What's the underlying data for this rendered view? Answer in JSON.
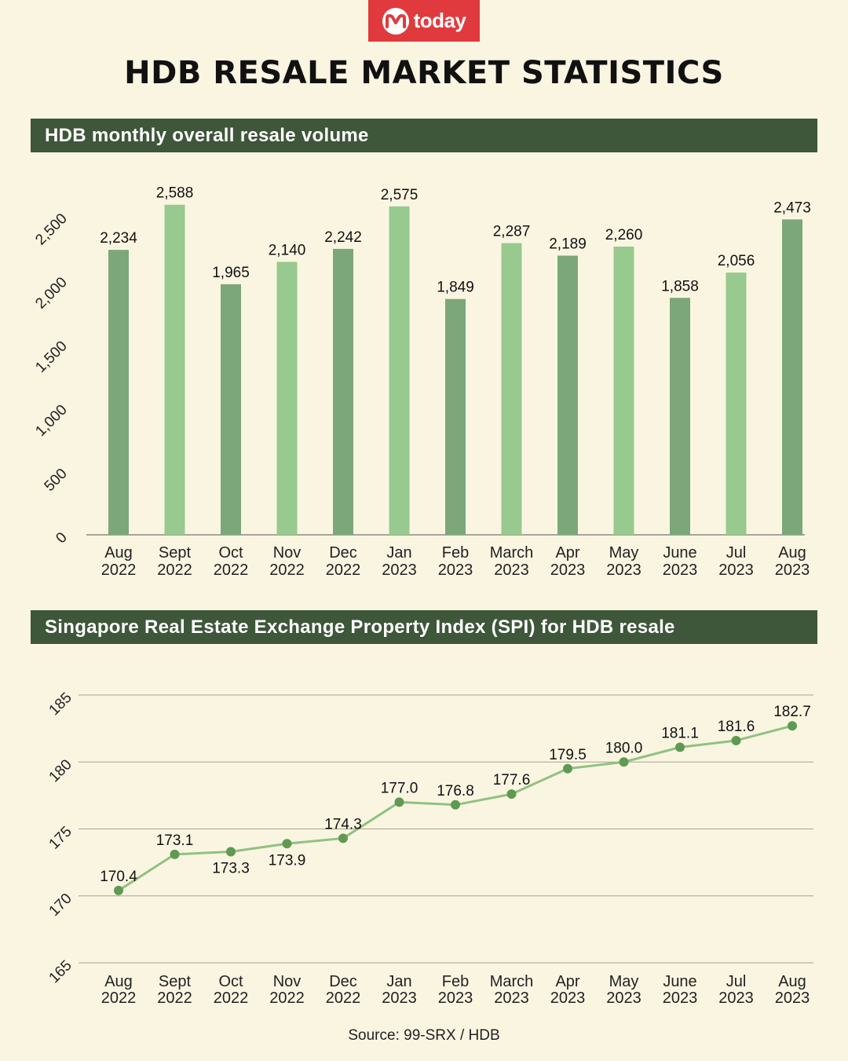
{
  "brand": {
    "logo_text": "today",
    "logo_color": "#e03a3e"
  },
  "title": "HDB RESALE MARKET STATISTICS",
  "source": "Source: 99-SRX / HDB",
  "colors": {
    "background": "#faf5e1",
    "header_bar": "#3e563a",
    "bar_dark": "#7ca77a",
    "bar_light": "#98c98f",
    "line": "#8fc282",
    "marker": "#5f9a52"
  },
  "chart_data": [
    {
      "type": "bar",
      "title": "HDB monthly overall resale volume",
      "categories": [
        [
          "Aug",
          "2022"
        ],
        [
          "Sept",
          "2022"
        ],
        [
          "Oct",
          "2022"
        ],
        [
          "Nov",
          "2022"
        ],
        [
          "Dec",
          "2022"
        ],
        [
          "Jan",
          "2023"
        ],
        [
          "Feb",
          "2023"
        ],
        [
          "March",
          "2023"
        ],
        [
          "Apr",
          "2023"
        ],
        [
          "May",
          "2023"
        ],
        [
          "June",
          "2023"
        ],
        [
          "Jul",
          "2023"
        ],
        [
          "Aug",
          "2023"
        ]
      ],
      "values": [
        2234,
        2588,
        1965,
        2140,
        2242,
        2575,
        1849,
        2287,
        2189,
        2260,
        1858,
        2056,
        2473
      ],
      "value_labels": [
        "2,234",
        "2,588",
        "1,965",
        "2,140",
        "2,242",
        "2,575",
        "1,849",
        "2,287",
        "2,189",
        "2,260",
        "1,858",
        "2,056",
        "2,473"
      ],
      "yticks": [
        0,
        500,
        1000,
        1500,
        2000,
        2500
      ],
      "ytick_labels": [
        "0",
        "500",
        "1,000",
        "1,500",
        "2,000",
        "2,500"
      ],
      "ylim": [
        0,
        2600
      ],
      "grid": false
    },
    {
      "type": "line",
      "title": "Singapore Real Estate Exchange Property Index (SPI) for HDB resale",
      "categories": [
        [
          "Aug",
          "2022"
        ],
        [
          "Sept",
          "2022"
        ],
        [
          "Oct",
          "2022"
        ],
        [
          "Nov",
          "2022"
        ],
        [
          "Dec",
          "2022"
        ],
        [
          "Jan",
          "2023"
        ],
        [
          "Feb",
          "2023"
        ],
        [
          "March",
          "2023"
        ],
        [
          "Apr",
          "2023"
        ],
        [
          "May",
          "2023"
        ],
        [
          "June",
          "2023"
        ],
        [
          "Jul",
          "2023"
        ],
        [
          "Aug",
          "2023"
        ]
      ],
      "values": [
        170.4,
        173.1,
        173.3,
        173.9,
        174.3,
        177.0,
        176.8,
        177.6,
        179.5,
        180.0,
        181.1,
        181.6,
        182.7
      ],
      "value_labels": [
        "170.4",
        "173.1",
        "173.3",
        "173.9",
        "174.3",
        "177.0",
        "176.8",
        "177.6",
        "179.5",
        "180.0",
        "181.1",
        "181.6",
        "182.7"
      ],
      "label_placement": [
        "above",
        "above",
        "below",
        "below",
        "above",
        "above",
        "above",
        "above",
        "above",
        "above",
        "above",
        "above",
        "above"
      ],
      "yticks": [
        165,
        170,
        175,
        180,
        185
      ],
      "ytick_labels": [
        "165",
        "170",
        "175",
        "180",
        "185"
      ],
      "ylim": [
        165,
        185
      ],
      "grid": true
    }
  ]
}
